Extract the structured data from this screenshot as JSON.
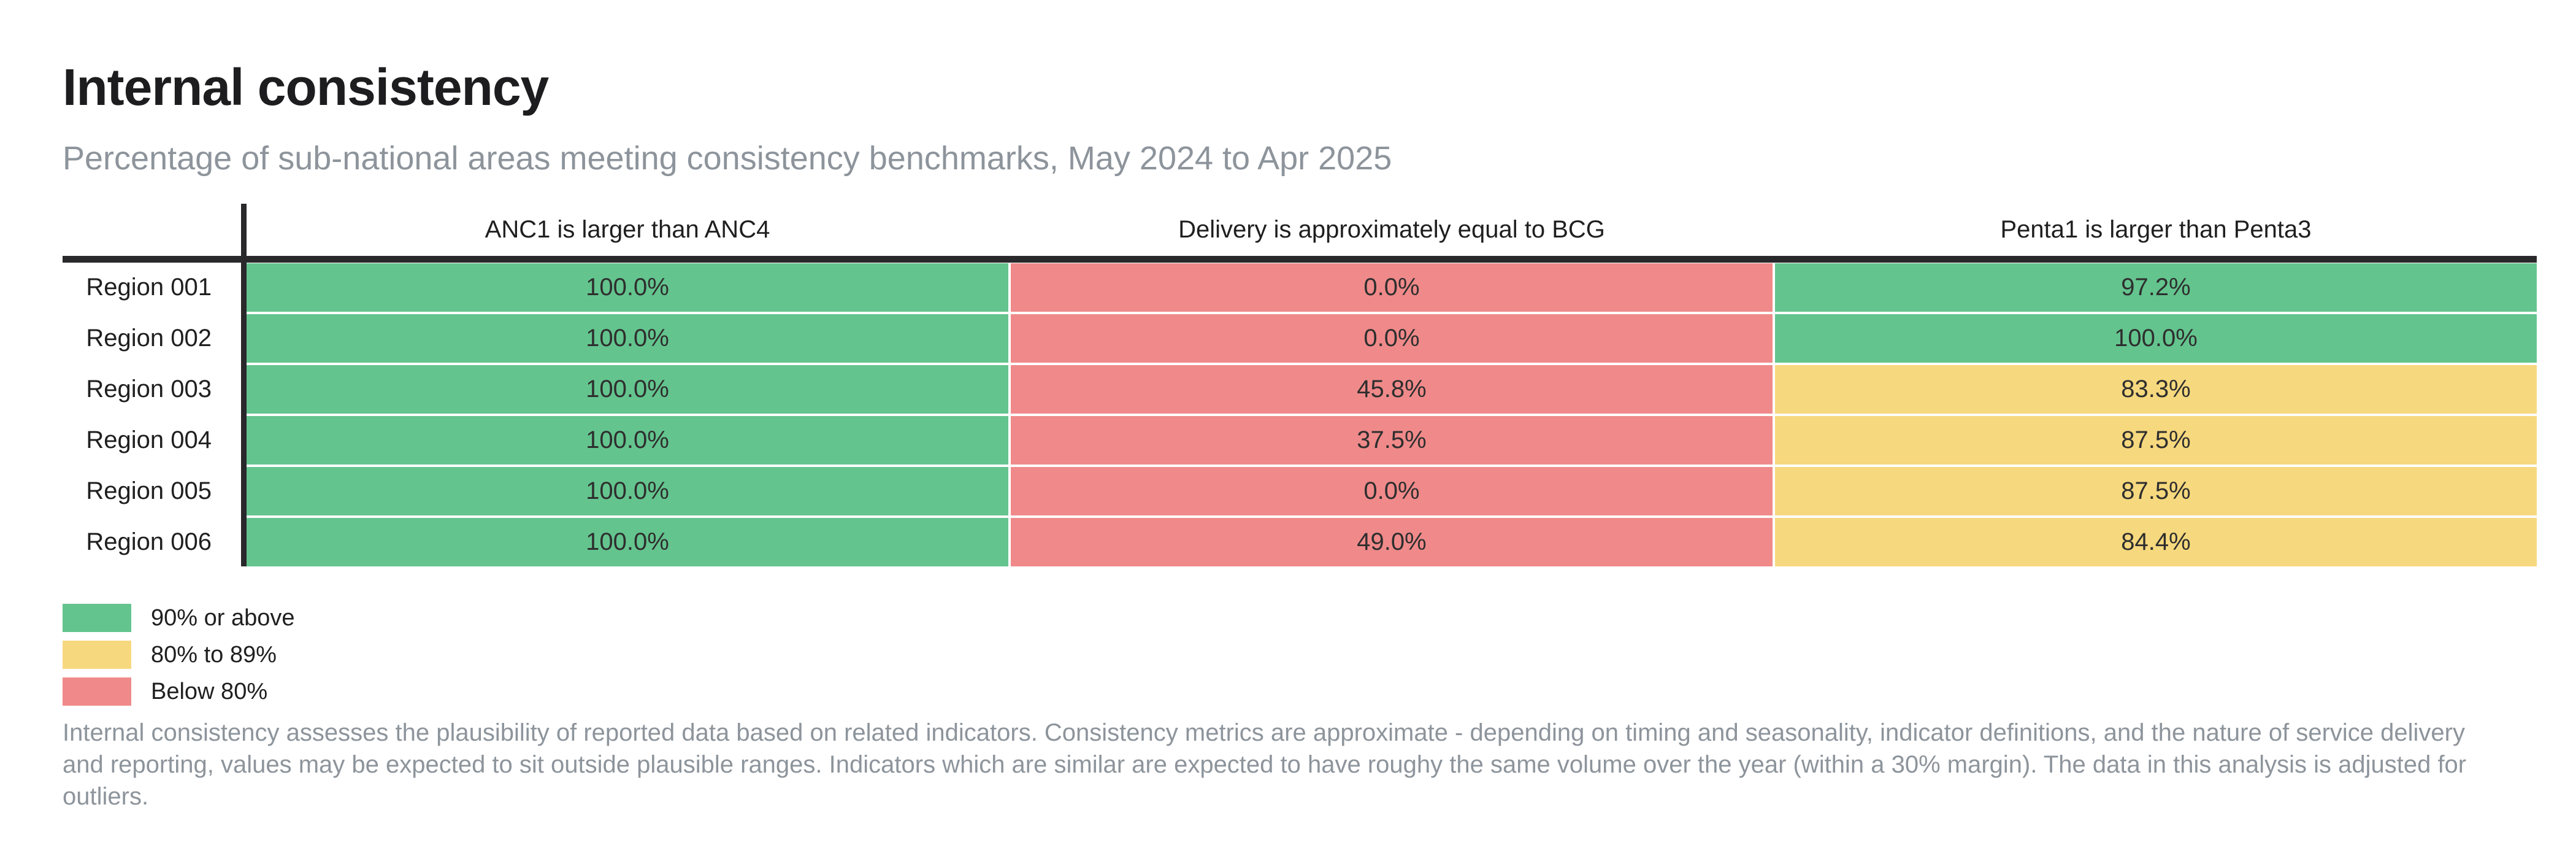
{
  "page": {
    "title": "Internal consistency",
    "subtitle": "Percentage of sub-national areas meeting consistency benchmarks, May 2024 to Apr 2025",
    "footnote": "Internal consistency assesses the plausibility of reported data based on related indicators. Consistency metrics are approximate - depending on timing and seasonality, indicator definitions, and the nature of service delivery and reporting, values may be expected to sit outside plausible ranges. Indicators which are similar are expected to have roughy the same volume over the year (within a 30% margin). The data in this analysis is adjusted for outliers."
  },
  "colors": {
    "green": "#64C48E",
    "yellow": "#F6D87E",
    "red": "#F08A8A",
    "dark": "#29292C",
    "gray_text": "#8D949B"
  },
  "legend": [
    {
      "label": "90% or above",
      "color_key": "green"
    },
    {
      "label": "80% to 89%",
      "color_key": "yellow"
    },
    {
      "label": "Below 80%",
      "color_key": "red"
    }
  ],
  "chart_data": {
    "type": "heatmap",
    "title": "Internal consistency",
    "subtitle": "Percentage of sub-national areas meeting consistency benchmarks, May 2024 to Apr 2025",
    "columns": [
      "ANC1 is larger than ANC4",
      "Delivery is approximately equal to BCG",
      "Penta1 is larger than Penta3"
    ],
    "rows": [
      "Region 001",
      "Region 002",
      "Region 003",
      "Region 004",
      "Region 005",
      "Region 006"
    ],
    "values": [
      [
        100.0,
        0.0,
        97.2
      ],
      [
        100.0,
        0.0,
        100.0
      ],
      [
        100.0,
        45.8,
        83.3
      ],
      [
        100.0,
        37.5,
        87.5
      ],
      [
        100.0,
        0.0,
        87.5
      ],
      [
        100.0,
        49.0,
        84.4
      ]
    ],
    "value_labels": [
      [
        "100.0%",
        "0.0%",
        "97.2%"
      ],
      [
        "100.0%",
        "0.0%",
        "100.0%"
      ],
      [
        "100.0%",
        "45.8%",
        "83.3%"
      ],
      [
        "100.0%",
        "37.5%",
        "87.5%"
      ],
      [
        "100.0%",
        "0.0%",
        "87.5%"
      ],
      [
        "100.0%",
        "49.0%",
        "84.4%"
      ]
    ],
    "color_rule": {
      "green_min": 90,
      "yellow_min": 80
    },
    "legend_position": "bottom-left",
    "grid": false
  }
}
